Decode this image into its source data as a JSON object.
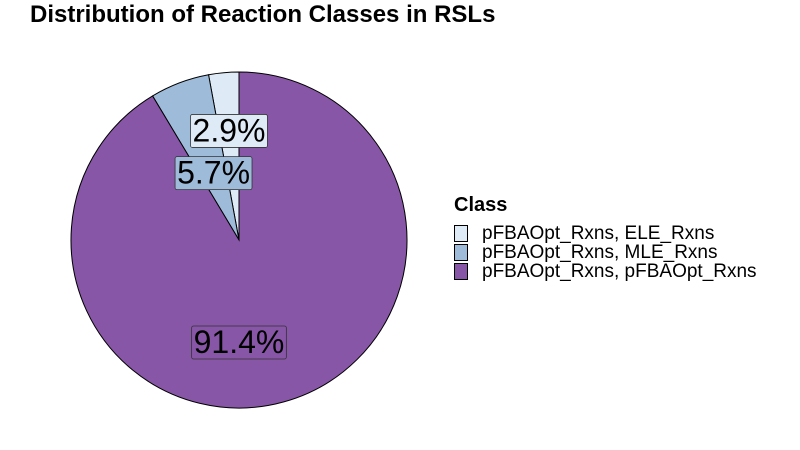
{
  "chart_data": {
    "type": "pie",
    "title": "Distribution of Reaction Classes in RSLs",
    "legend_title": "Class",
    "legend_position": "right",
    "slices": [
      {
        "label": "pFBAOpt_Rxns, ELE_Rxns",
        "value": 2.9,
        "display": "2.9%",
        "color": "#deebf7"
      },
      {
        "label": "pFBAOpt_Rxns, MLE_Rxns",
        "value": 5.7,
        "display": "5.7%",
        "color": "#9ebcda"
      },
      {
        "label": "pFBAOpt_Rxns, pFBAOpt_Rxns",
        "value": 91.4,
        "display": "91.4%",
        "color": "#8856a7"
      }
    ]
  }
}
